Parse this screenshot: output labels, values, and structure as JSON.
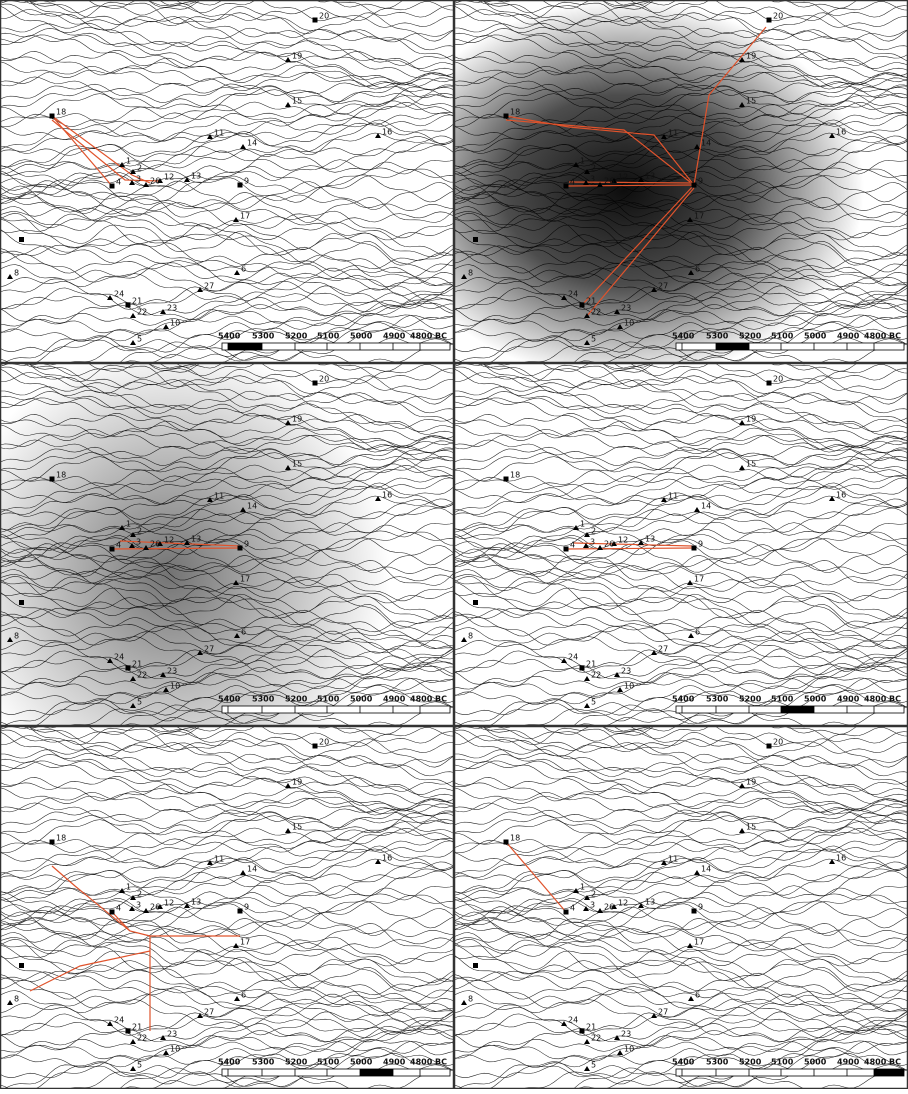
{
  "sites": [
    {
      "label": "1"
    },
    {
      "label": "2"
    },
    {
      "label": "3"
    },
    {
      "label": "4"
    },
    {
      "label": "5"
    },
    {
      "label": "6"
    },
    {
      "label": "8"
    },
    {
      "label": "9"
    },
    {
      "label": "10"
    },
    {
      "label": "11"
    },
    {
      "label": "12"
    },
    {
      "label": "13"
    },
    {
      "label": "14"
    },
    {
      "label": "15"
    },
    {
      "label": "16"
    },
    {
      "label": "17"
    },
    {
      "label": "18"
    },
    {
      "label": "19"
    },
    {
      "label": "20"
    },
    {
      "label": "21"
    },
    {
      "label": "22"
    },
    {
      "label": "23"
    },
    {
      "label": "24"
    },
    {
      "label": "26"
    },
    {
      "label": "27"
    }
  ],
  "scale_bar": {
    "labels": [
      "5400",
      "5300",
      "5200",
      "5100",
      "5000",
      "4900",
      "4800 BC"
    ]
  }
}
